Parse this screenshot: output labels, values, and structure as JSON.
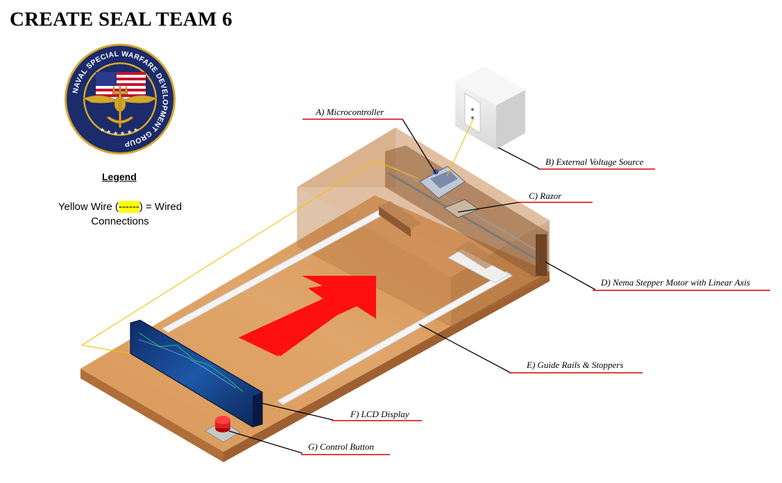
{
  "title": "CREATE SEAL TEAM 6",
  "logo": {
    "ring_text": "NAVAL SPECIAL WARFARE DEVELOPMENT GROUP",
    "colors": {
      "ring": "#1b2b6b",
      "gold": "#d4a72c",
      "flag_red": "#c8102e",
      "flag_blue": "#2a3a8c"
    }
  },
  "legend": {
    "heading": "Legend",
    "line1_prefix": "Yellow Wire (",
    "wire_sample": "------",
    "line1_suffix": ") = Wired",
    "line2": "Connections"
  },
  "callouts": [
    {
      "id": "a",
      "label": "A) Microcontroller"
    },
    {
      "id": "b",
      "label": "B) External Voltage Source"
    },
    {
      "id": "c",
      "label": "C) Razor"
    },
    {
      "id": "d",
      "label": "D) Nema Stepper Motor with Linear Axis"
    },
    {
      "id": "e",
      "label": "E) Guide Rails & Stoppers"
    },
    {
      "id": "f",
      "label": "F) LCD Display"
    },
    {
      "id": "g",
      "label": "G) Control Button"
    }
  ],
  "colors": {
    "wood": "#d6995d",
    "wood_edge": "#a8683a",
    "arrow": "#ff1010",
    "wire": "#f2c200",
    "callout_underline": "#d40000",
    "rail": "#f2f2f2",
    "lcd": "#1b3f8a"
  }
}
